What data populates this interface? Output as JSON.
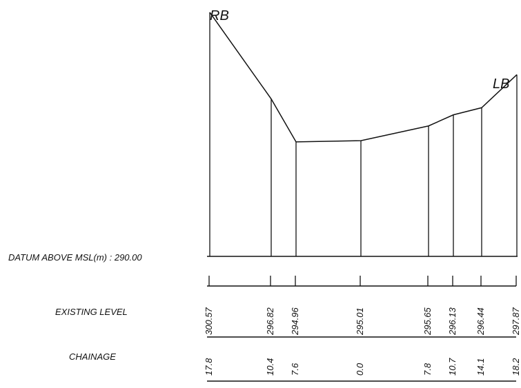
{
  "labels": {
    "rb": "RB",
    "lb": "LB",
    "datum": "DATUM ABOVE MSL(m) : 290.00",
    "existing_level": "EXISTING LEVEL",
    "chainage": "CHAINAGE"
  },
  "stations": [
    {
      "level": "300.57",
      "chainage": "17.8"
    },
    {
      "level": "296.82",
      "chainage": "10.4"
    },
    {
      "level": "294.96",
      "chainage": "7.6"
    },
    {
      "level": "295.01",
      "chainage": "0.0"
    },
    {
      "level": "295.65",
      "chainage": "7.8"
    },
    {
      "level": "296.13",
      "chainage": "10.7"
    },
    {
      "level": "296.44",
      "chainage": "14.1"
    },
    {
      "level": "297.87",
      "chainage": "18.2"
    }
  ]
}
